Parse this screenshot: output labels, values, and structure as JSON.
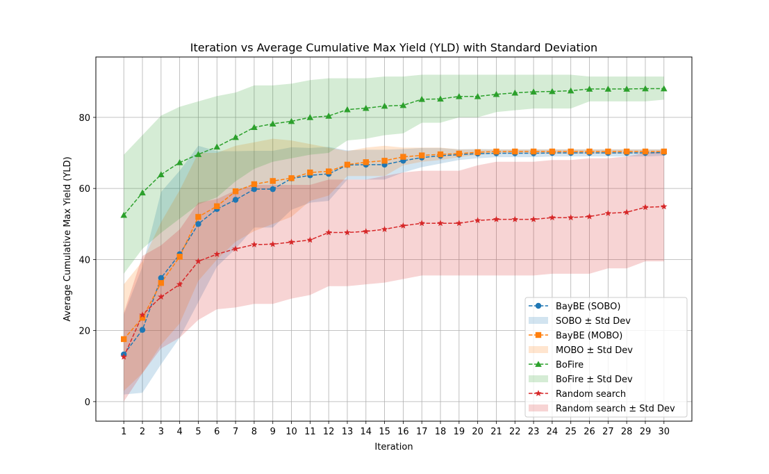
{
  "chart_data": {
    "type": "line",
    "title": "Iteration vs Average Cumulative Max Yield (YLD) with Standard Deviation",
    "xlabel": "Iteration",
    "ylabel": "Average Cumulative Max Yield (YLD)",
    "x": [
      1,
      2,
      3,
      4,
      5,
      6,
      7,
      8,
      9,
      10,
      11,
      12,
      13,
      14,
      15,
      16,
      17,
      18,
      19,
      20,
      21,
      22,
      23,
      24,
      25,
      26,
      27,
      28,
      29,
      30
    ],
    "xlim": [
      -0.5,
      31.5
    ],
    "ylim": [
      -5.5,
      97
    ],
    "yticks": [
      0,
      20,
      40,
      60,
      80
    ],
    "grid": true,
    "legend_position": "lower-right",
    "series": [
      {
        "name": "BayBE (SOBO)",
        "band_name": "SOBO ± Std Dev",
        "color": "#1f77b4",
        "marker": "circle",
        "values": [
          13.3,
          20.2,
          34.8,
          41.5,
          50.0,
          54.2,
          56.8,
          59.8,
          59.8,
          62.8,
          63.7,
          64.1,
          66.6,
          66.7,
          66.7,
          67.8,
          68.7,
          69.2,
          69.5,
          69.8,
          69.9,
          69.9,
          69.9,
          70.0,
          70.0,
          70.0,
          70.0,
          70.0,
          70.0,
          70.1
        ],
        "lower": [
          2.0,
          2.5,
          10.5,
          18.0,
          28.0,
          38.0,
          43.0,
          49.0,
          49.0,
          54.0,
          56.0,
          56.5,
          62.5,
          62.5,
          62.5,
          64.5,
          66.0,
          67.0,
          68.0,
          68.5,
          68.8,
          68.8,
          68.8,
          69.0,
          69.0,
          69.0,
          69.0,
          69.0,
          69.0,
          69.2
        ],
        "upper": [
          24.5,
          38.0,
          59.0,
          65.0,
          72.0,
          70.5,
          70.5,
          70.6,
          70.6,
          71.6,
          71.4,
          71.7,
          70.7,
          70.9,
          70.9,
          71.1,
          71.4,
          71.4,
          71.0,
          71.1,
          71.0,
          71.0,
          71.0,
          71.0,
          71.0,
          71.0,
          71.0,
          71.0,
          71.0,
          71.0
        ]
      },
      {
        "name": "BayBE (MOBO)",
        "band_name": "MOBO ± Std Dev",
        "color": "#ff7f0e",
        "marker": "square",
        "values": [
          17.6,
          23.6,
          33.4,
          40.8,
          52.0,
          55.0,
          59.2,
          61.2,
          62.1,
          62.9,
          64.5,
          64.8,
          66.7,
          67.4,
          67.8,
          68.9,
          69.3,
          69.6,
          69.8,
          70.2,
          70.4,
          70.4,
          70.4,
          70.4,
          70.4,
          70.4,
          70.4,
          70.4,
          70.4,
          70.4
        ],
        "lower": [
          3.0,
          8.0,
          16.0,
          22.0,
          34.0,
          40.0,
          45.0,
          48.0,
          50.0,
          52.0,
          56.5,
          58.0,
          63.5,
          63.5,
          63.5,
          66.5,
          67.5,
          68.0,
          68.8,
          69.5,
          69.8,
          69.8,
          69.8,
          69.8,
          69.8,
          69.8,
          69.8,
          69.8,
          69.8,
          69.8
        ],
        "upper": [
          33.0,
          39.5,
          50.5,
          59.5,
          70.0,
          70.0,
          72.0,
          73.0,
          74.0,
          73.5,
          72.5,
          71.5,
          70.5,
          71.5,
          72.0,
          71.5,
          71.5,
          71.5,
          71.0,
          71.0,
          71.0,
          71.0,
          71.0,
          71.0,
          71.0,
          71.0,
          71.0,
          71.0,
          71.0,
          71.0
        ]
      },
      {
        "name": "BoFire",
        "band_name": "BoFire ± Std Dev",
        "color": "#2ca02c",
        "marker": "triangle",
        "values": [
          52.5,
          58.8,
          63.9,
          67.3,
          69.6,
          71.7,
          74.4,
          77.2,
          78.2,
          78.9,
          80.0,
          80.4,
          82.2,
          82.6,
          83.2,
          83.4,
          85.1,
          85.2,
          85.9,
          85.9,
          86.5,
          86.9,
          87.2,
          87.3,
          87.5,
          88.0,
          88.0,
          88.0,
          88.1,
          88.1
        ],
        "lower": [
          36.0,
          43.0,
          47.5,
          51.5,
          55.5,
          57.5,
          62.0,
          65.5,
          67.5,
          68.5,
          69.5,
          70.0,
          73.5,
          74.0,
          75.0,
          75.5,
          78.5,
          78.5,
          80.0,
          80.0,
          81.5,
          82.0,
          82.5,
          82.5,
          82.5,
          84.5,
          84.5,
          84.5,
          84.5,
          85.0
        ],
        "upper": [
          69.5,
          75.0,
          80.5,
          83.0,
          84.5,
          86.0,
          87.0,
          89.0,
          89.0,
          89.5,
          90.5,
          91.0,
          91.0,
          91.0,
          91.5,
          91.5,
          92.0,
          92.0,
          92.0,
          92.0,
          92.0,
          92.0,
          92.0,
          92.0,
          92.0,
          91.5,
          91.5,
          91.5,
          91.5,
          91.5
        ]
      },
      {
        "name": "Random search",
        "band_name": "Random search ± Std Dev",
        "color": "#d62728",
        "marker": "star",
        "values": [
          12.6,
          24.4,
          29.5,
          33.0,
          39.5,
          41.5,
          43.0,
          44.2,
          44.3,
          44.9,
          45.5,
          47.6,
          47.6,
          47.9,
          48.5,
          49.5,
          50.2,
          50.2,
          50.2,
          51.0,
          51.3,
          51.3,
          51.3,
          51.8,
          51.8,
          52.1,
          53.0,
          53.3,
          54.7,
          54.9
        ],
        "lower": [
          0.0,
          8.0,
          15.0,
          18.0,
          23.0,
          26.0,
          26.5,
          27.5,
          27.5,
          29.0,
          30.0,
          32.5,
          32.5,
          33.0,
          33.5,
          34.5,
          35.5,
          35.5,
          35.5,
          35.5,
          35.5,
          35.5,
          35.5,
          36.0,
          36.0,
          36.0,
          37.5,
          37.5,
          39.5,
          39.5
        ],
        "upper": [
          25.0,
          41.0,
          44.0,
          48.5,
          56.0,
          57.0,
          59.5,
          61.0,
          61.0,
          61.0,
          61.0,
          62.5,
          62.5,
          62.5,
          63.5,
          64.5,
          65.0,
          65.0,
          65.0,
          66.5,
          67.5,
          67.5,
          67.5,
          68.0,
          68.0,
          68.5,
          68.5,
          69.0,
          70.0,
          70.5
        ]
      }
    ]
  }
}
